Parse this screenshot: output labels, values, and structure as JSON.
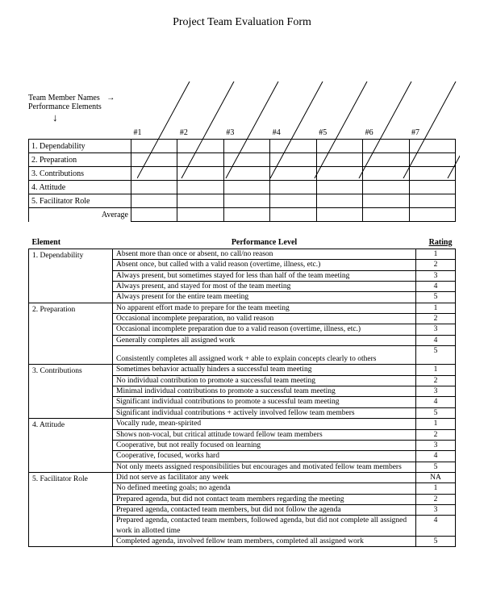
{
  "title": "Project Team Evaluation Form",
  "labels": {
    "team_member_names": "Team Member Names",
    "performance_elements": "Performance Elements",
    "average": "Average",
    "element_header": "Element",
    "performance_header": "Performance Level",
    "rating_header": "Rating"
  },
  "column_headers": [
    "#1",
    "#2",
    "#3",
    "#4",
    "#5",
    "#6",
    "#7"
  ],
  "grid_rows": [
    "1. Dependability",
    "2. Preparation",
    "3. Contributions",
    "4. Attitude",
    "5. Facilitator Role"
  ],
  "rubric": [
    {
      "element": "1. Dependability",
      "levels": [
        {
          "desc": "Absent more than once or absent, no call/no reason",
          "rating": "1"
        },
        {
          "desc": "Absent once, but called with a valid reason (overtime, illness, etc.)",
          "rating": "2"
        },
        {
          "desc": "Always present, but sometimes stayed for less than half of the team meeting",
          "rating": "3"
        },
        {
          "desc": "Always present, and stayed for most of the team meeting",
          "rating": "4"
        },
        {
          "desc": "Always present for the entire team meeting",
          "rating": "5"
        }
      ]
    },
    {
      "element": "2. Preparation",
      "levels": [
        {
          "desc": "No apparent effort made to prepare for the team meeting",
          "rating": "1"
        },
        {
          "desc": "Occasional incomplete preparation, no valid reason",
          "rating": "2"
        },
        {
          "desc": "Occasional incomplete preparation due to a valid reason (overtime, illness, etc.)",
          "rating": "3"
        },
        {
          "desc": "Generally completes all assigned work",
          "rating": "4"
        },
        {
          "desc": "Consistently completes all assigned work + able to explain concepts clearly to others",
          "rating": "5",
          "gap": true
        }
      ]
    },
    {
      "element": "3. Contributions",
      "levels": [
        {
          "desc": "Sometimes behavior actually hinders a successful team meeting",
          "rating": "1"
        },
        {
          "desc": "No individual contribution to promote a successful team meeting",
          "rating": "2"
        },
        {
          "desc": "Minimal individual contributions to promote a successful team meeting",
          "rating": "3"
        },
        {
          "desc": "Significant individual contributions to promote a sucessful team meeting",
          "rating": "4"
        },
        {
          "desc": "Significant individual contributions + actively involved fellow team members",
          "rating": "5"
        }
      ]
    },
    {
      "element": "4. Attitude",
      "levels": [
        {
          "desc": "Vocally rude, mean-spirited",
          "rating": "1"
        },
        {
          "desc": "Shows non-vocal, but critical attitude toward fellow team members",
          "rating": "2"
        },
        {
          "desc": "Cooperative, but not really focused on learning",
          "rating": "3"
        },
        {
          "desc": "Cooperative, focused, works hard",
          "rating": "4"
        },
        {
          "desc": "Not only meets assigned responsibilities but encourages and motivated fellow team members",
          "rating": "5"
        }
      ]
    },
    {
      "element": "5. Facilitator Role",
      "levels": [
        {
          "desc": "Did not serve as facilitator any week",
          "rating": "NA"
        },
        {
          "desc": "No defined meeting goals; no agenda",
          "rating": "1"
        },
        {
          "desc": "Prepared agenda, but did not contact team members regarding the meeting",
          "rating": "2"
        },
        {
          "desc": "Prepared agenda, contacted team members, but did not follow the agenda",
          "rating": "3"
        },
        {
          "desc": "Prepared agenda, contacted team members, followed agenda, but did not complete all assigned work in allotted time",
          "rating": "4"
        },
        {
          "desc": "Completed agenda, involved fellow team members, completed all assigned work",
          "rating": "5"
        }
      ]
    }
  ],
  "style": {
    "border_color": "#000000",
    "background": "#ffffff",
    "title_fontsize": 14,
    "body_fontsize": 10
  }
}
